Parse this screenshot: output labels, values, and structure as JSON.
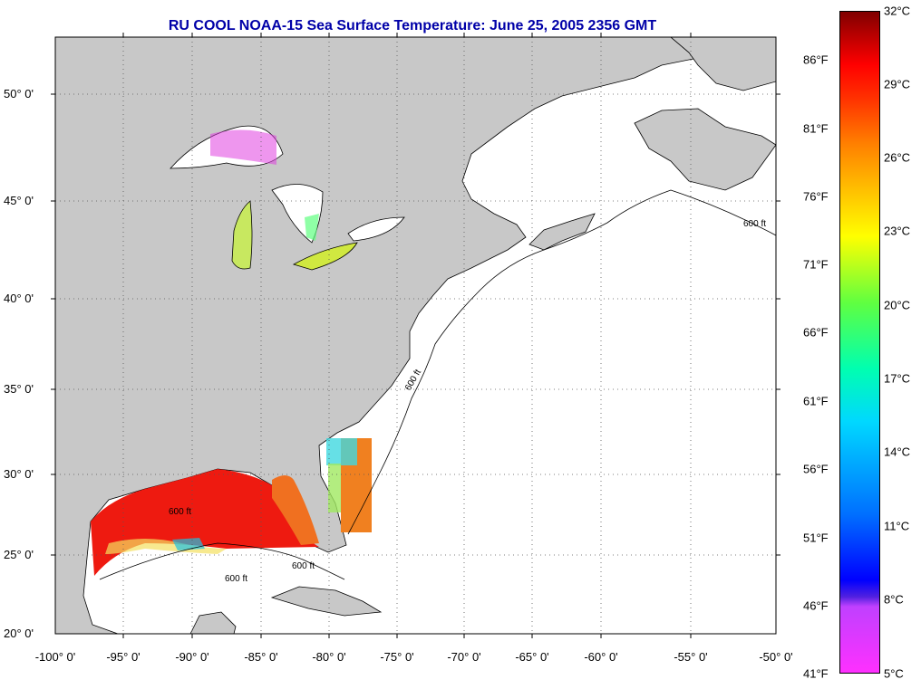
{
  "title": "RU COOL  NOAA-15  Sea Surface Temperature:  June 25, 2005 2356 GMT",
  "lat_labels": [
    "50° 0'",
    "45° 0'",
    "40° 0'",
    "35° 0'",
    "30° 0'",
    "25° 0'",
    "20° 0'"
  ],
  "lon_labels": [
    "-100° 0'",
    "-95° 0'",
    "-90° 0'",
    "-85° 0'",
    "-80° 0'",
    "-75° 0'",
    "-70° 0'",
    "-65° 0'",
    "-60° 0'",
    "-55° 0'",
    "-50° 0'"
  ],
  "colorbar": {
    "fahrenheit": [
      "86°F",
      "81°F",
      "76°F",
      "71°F",
      "66°F",
      "61°F",
      "56°F",
      "51°F",
      "46°F",
      "41°F"
    ],
    "celsius": [
      "32°C",
      "29°C",
      "26°C",
      "23°C",
      "20°C",
      "17°C",
      "14°C",
      "11°C",
      "8°C",
      "5°C"
    ]
  },
  "isobath_label": "600 ft",
  "colors": {
    "land": "#c8c8c8",
    "ocean": "#ffffff",
    "title": "#0000a8"
  }
}
